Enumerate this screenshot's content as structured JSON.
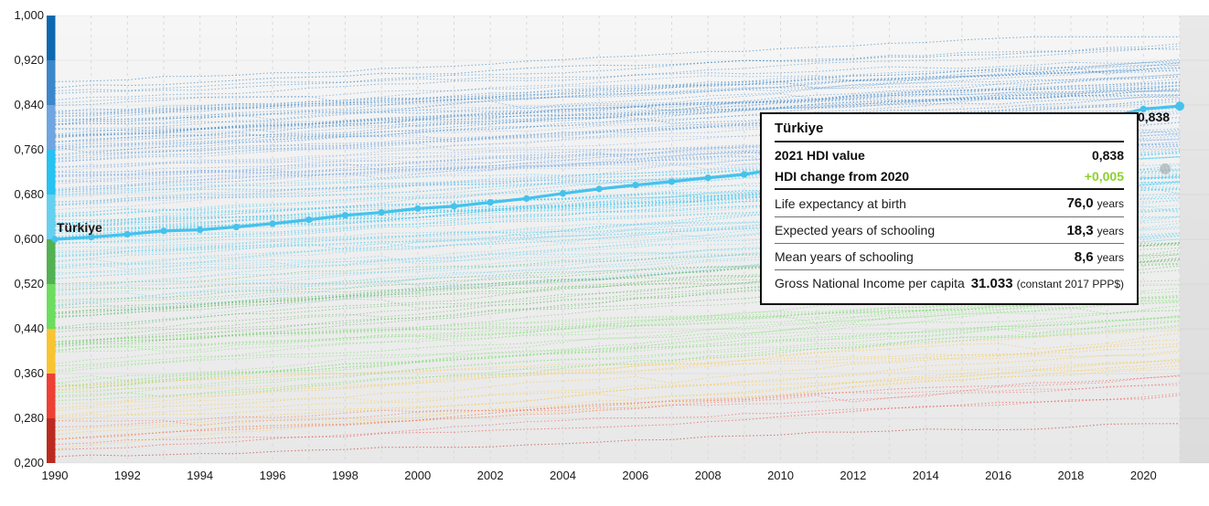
{
  "chart_data": {
    "type": "line",
    "title": "",
    "description": "HDI trends 1990-2021, all countries as dotted lines colored by HDI level, Türkiye highlighted",
    "x": {
      "range": [
        1990,
        2021
      ],
      "ticks": [
        1990,
        1992,
        1994,
        1996,
        1998,
        2000,
        2002,
        2004,
        2006,
        2008,
        2010,
        2012,
        2014,
        2016,
        2018,
        2020
      ]
    },
    "y": {
      "range": [
        0.2,
        1.0
      ],
      "tick_values": [
        1.0,
        0.92,
        0.84,
        0.76,
        0.68,
        0.6,
        0.52,
        0.44,
        0.36,
        0.28,
        0.2
      ],
      "tick_labels": [
        "1,000",
        "0,920",
        "0,840",
        "0,760",
        "0,680",
        "0,600",
        "0,520",
        "0,440",
        "0,360",
        "0,280",
        "0,200"
      ]
    },
    "grid": {
      "vertical_per_year": true,
      "vertical_dashed": true,
      "horizontal_per_tick": true
    },
    "color_scale": {
      "stops": [
        {
          "min": 0.92,
          "max": 1.0,
          "color": "#0c69b0"
        },
        {
          "min": 0.84,
          "max": 0.92,
          "color": "#3b87c9"
        },
        {
          "min": 0.76,
          "max": 0.84,
          "color": "#6fa5e1"
        },
        {
          "min": 0.68,
          "max": 0.76,
          "color": "#27c1f2"
        },
        {
          "min": 0.6,
          "max": 0.68,
          "color": "#66d0ee"
        },
        {
          "min": 0.52,
          "max": 0.6,
          "color": "#52b153"
        },
        {
          "min": 0.44,
          "max": 0.52,
          "color": "#6cdd5e"
        },
        {
          "min": 0.36,
          "max": 0.44,
          "color": "#f9c432"
        },
        {
          "min": 0.28,
          "max": 0.36,
          "color": "#ee4035"
        },
        {
          "min": 0.2,
          "max": 0.28,
          "color": "#bb2a20"
        }
      ]
    },
    "highlight_series": {
      "name": "Türkiye",
      "color": "#45c2ec",
      "end_label": "0,838",
      "years": [
        1990,
        1991,
        1992,
        1993,
        1994,
        1995,
        1996,
        1997,
        1998,
        1999,
        2000,
        2001,
        2002,
        2003,
        2004,
        2005,
        2006,
        2007,
        2008,
        2009,
        2010,
        2011,
        2012,
        2013,
        2014,
        2015,
        2016,
        2017,
        2018,
        2019,
        2020,
        2021
      ],
      "values": [
        0.6,
        0.604,
        0.609,
        0.615,
        0.617,
        0.622,
        0.628,
        0.635,
        0.643,
        0.648,
        0.655,
        0.659,
        0.666,
        0.673,
        0.682,
        0.69,
        0.697,
        0.703,
        0.71,
        0.716,
        0.727,
        0.738,
        0.748,
        0.76,
        0.768,
        0.776,
        0.785,
        0.794,
        0.806,
        0.817,
        0.833,
        0.838
      ]
    },
    "background_series": {
      "style": "dotted",
      "seed": 20211990,
      "groups": [
        {
          "count": 15,
          "start": [
            0.8,
            0.885
          ],
          "rise": [
            0.05,
            0.095
          ]
        },
        {
          "count": 52,
          "start": [
            0.66,
            0.82
          ],
          "rise": [
            0.05,
            0.12
          ]
        },
        {
          "count": 46,
          "start": [
            0.54,
            0.68
          ],
          "rise": [
            0.06,
            0.14
          ]
        },
        {
          "count": 38,
          "start": [
            0.4,
            0.56
          ],
          "rise": [
            0.07,
            0.16
          ]
        },
        {
          "count": 22,
          "start": [
            0.3,
            0.42
          ],
          "rise": [
            0.06,
            0.17
          ]
        },
        {
          "count": 17,
          "start": [
            0.21,
            0.32
          ],
          "rise": [
            0.05,
            0.15
          ]
        }
      ]
    },
    "extra_markers": [
      {
        "year": 2020.6,
        "value": 0.726,
        "color": "#a0a0a0",
        "r": 6,
        "opacity": 0.55
      }
    ]
  },
  "tooltip": {
    "title": "Türkiye",
    "hdi_rows": [
      {
        "label": "2021 HDI value",
        "value": "0,838",
        "value_color": "#101010"
      },
      {
        "label": "HDI change from 2020",
        "value": "+0,005",
        "value_color": "#8cd22d"
      }
    ],
    "stat_rows": [
      {
        "label": "Life expectancy at birth",
        "value": "76,0",
        "unit": "years"
      },
      {
        "label": "Expected years of schooling",
        "value": "18,3",
        "unit": "years"
      },
      {
        "label": "Mean years of schooling",
        "value": "8,6",
        "unit": "years"
      },
      {
        "label": "Gross National Income per capita",
        "value": "31.033",
        "unit": "(constant 2017 PPP$)"
      }
    ]
  }
}
